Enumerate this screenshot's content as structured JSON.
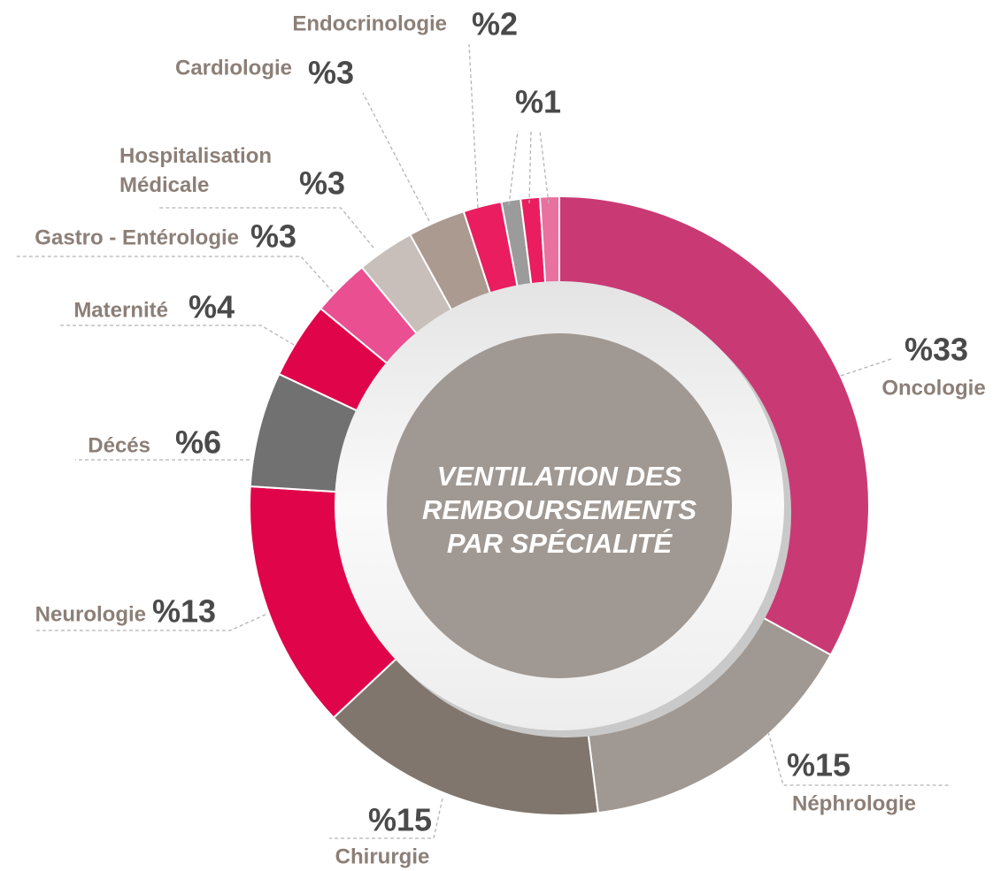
{
  "chart_data": {
    "type": "donut",
    "title": "VENTILATION DES REMBOURSEMENTS PAR SPÉCIALITÉ",
    "categories": [
      "Oncologie",
      "Néphrologie",
      "Chirurgie",
      "Neurologie",
      "Décés",
      "Maternité",
      "Gastro - Entérologie",
      "Hospitalisation Médicale",
      "Cardiologie",
      "Endocrinologie",
      null,
      null,
      null
    ],
    "values": [
      33,
      15,
      15,
      13,
      6,
      4,
      3,
      3,
      3,
      2,
      1,
      1,
      1
    ],
    "value_labels": [
      "%33",
      "%15",
      "%15",
      "%13",
      "%6",
      "%4",
      "%3",
      "%3",
      "%3",
      "%2",
      null,
      "%1",
      null
    ],
    "colors": [
      "#c93a74",
      "#a09892",
      "#80766d",
      "#e0054a",
      "#717171",
      "#e0054a",
      "#e94f91",
      "#c8bfba",
      "#ab9a8f",
      "#e91d5f",
      "#9b9b9b",
      "#e91d5f",
      "#e8719f"
    ]
  }
}
